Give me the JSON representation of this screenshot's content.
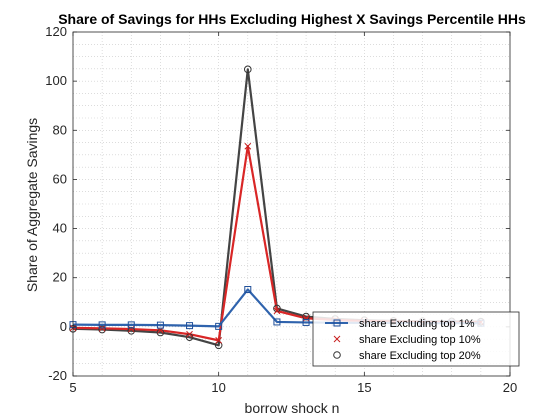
{
  "chart_data": {
    "type": "line",
    "title": "Share of Savings for HHs Excluding Highest X Savings Percentile HHs",
    "xlabel": "borrow shock n",
    "ylabel": "Share of Aggregate Savings",
    "xlim": [
      5,
      20
    ],
    "ylim": [
      -20,
      120
    ],
    "xticks": [
      "5",
      "10",
      "15",
      "20"
    ],
    "yticks": [
      "-20",
      "0",
      "20",
      "40",
      "60",
      "80",
      "100",
      "120"
    ],
    "grid": "minor-dotted",
    "legend_position": "bottom-right",
    "x": [
      5,
      6,
      7,
      8,
      9,
      10,
      11,
      12,
      13,
      14,
      15,
      16,
      17,
      18,
      19
    ],
    "series": [
      {
        "name": "share Excluding top 1%",
        "values": [
          0.9,
          0.8,
          0.8,
          0.7,
          0.5,
          0.2,
          15.2,
          2.0,
          1.8,
          1.7,
          1.6,
          1.6,
          1.5,
          1.5,
          1.5
        ],
        "color": "#2f63ad",
        "marker": "square"
      },
      {
        "name": "share Excluding top 10%",
        "values": [
          -0.4,
          -0.6,
          -0.9,
          -1.4,
          -3.0,
          -5.5,
          73.5,
          6.5,
          3.5,
          2.8,
          2.4,
          2.2,
          2.0,
          1.9,
          1.9
        ],
        "color": "#d92626",
        "marker": "x"
      },
      {
        "name": "share Excluding top 20%",
        "values": [
          -0.8,
          -1.1,
          -1.6,
          -2.3,
          -4.2,
          -7.5,
          104.8,
          7.5,
          4.2,
          3.2,
          2.7,
          2.4,
          2.3,
          2.2,
          2.1
        ],
        "color": "#444444",
        "marker": "circle"
      }
    ]
  }
}
